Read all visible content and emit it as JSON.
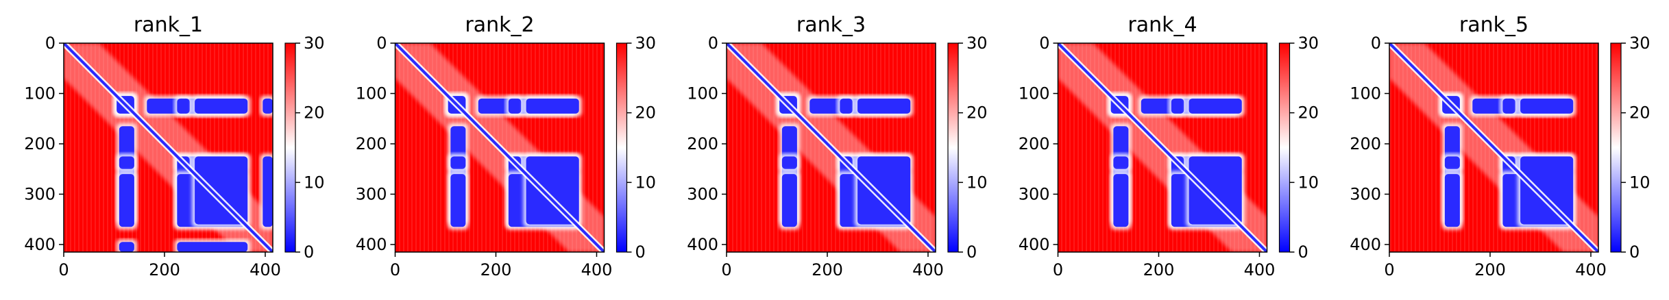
{
  "chart_data": [
    {
      "type": "heatmap",
      "title": "rank_1",
      "xlim": [
        0,
        415
      ],
      "ylim": [
        415,
        0
      ],
      "x_ticks": [
        0,
        200,
        400
      ],
      "y_ticks": [
        0,
        100,
        200,
        300,
        400
      ],
      "colorbar": {
        "range": [
          0,
          30
        ],
        "ticks": [
          0,
          10,
          20,
          30
        ],
        "colors": [
          "#0000ff",
          "#ffffff",
          "#ff0000"
        ]
      },
      "blue_blocks": [
        [
          105,
          140,
          105,
          140
        ],
        [
          165,
          355,
          110,
          140
        ],
        [
          225,
          360,
          225,
          250
        ],
        [
          225,
          360,
          260,
          365
        ],
        [
          110,
          140,
          225,
          250
        ],
        [
          110,
          140,
          260,
          365
        ],
        [
          395,
          415,
          110,
          140
        ],
        [
          395,
          415,
          225,
          365
        ]
      ]
    },
    {
      "type": "heatmap",
      "title": "rank_2",
      "xlim": [
        0,
        415
      ],
      "ylim": [
        415,
        0
      ],
      "x_ticks": [
        0,
        200,
        400
      ],
      "y_ticks": [
        0,
        100,
        200,
        300,
        400
      ],
      "colorbar": {
        "range": [
          0,
          30
        ],
        "ticks": [
          0,
          10,
          20,
          30
        ],
        "colors": [
          "#0000ff",
          "#ffffff",
          "#ff0000"
        ]
      },
      "blue_blocks": [
        [
          105,
          140,
          105,
          140
        ],
        [
          165,
          355,
          110,
          140
        ],
        [
          225,
          360,
          225,
          250
        ],
        [
          225,
          360,
          260,
          365
        ],
        [
          110,
          140,
          225,
          250
        ],
        [
          110,
          140,
          260,
          365
        ]
      ]
    },
    {
      "type": "heatmap",
      "title": "rank_3",
      "xlim": [
        0,
        415
      ],
      "ylim": [
        415,
        0
      ],
      "x_ticks": [
        0,
        200,
        400
      ],
      "y_ticks": [
        0,
        100,
        200,
        300,
        400
      ],
      "colorbar": {
        "range": [
          0,
          30
        ],
        "ticks": [
          0,
          10,
          20,
          30
        ],
        "colors": [
          "#0000ff",
          "#ffffff",
          "#ff0000"
        ]
      },
      "blue_blocks": [
        [
          105,
          140,
          105,
          140
        ],
        [
          165,
          355,
          110,
          140
        ],
        [
          225,
          360,
          225,
          250
        ],
        [
          225,
          360,
          260,
          365
        ],
        [
          110,
          140,
          225,
          250
        ],
        [
          110,
          140,
          260,
          365
        ]
      ]
    },
    {
      "type": "heatmap",
      "title": "rank_4",
      "xlim": [
        0,
        415
      ],
      "ylim": [
        415,
        0
      ],
      "x_ticks": [
        0,
        200,
        400
      ],
      "y_ticks": [
        0,
        100,
        200,
        300,
        400
      ],
      "colorbar": {
        "range": [
          0,
          30
        ],
        "ticks": [
          0,
          10,
          20,
          30
        ],
        "colors": [
          "#0000ff",
          "#ffffff",
          "#ff0000"
        ]
      },
      "blue_blocks": [
        [
          105,
          140,
          105,
          140
        ],
        [
          165,
          355,
          110,
          140
        ],
        [
          225,
          360,
          225,
          250
        ],
        [
          225,
          360,
          260,
          365
        ],
        [
          110,
          140,
          225,
          250
        ],
        [
          110,
          140,
          260,
          365
        ]
      ]
    },
    {
      "type": "heatmap",
      "title": "rank_5",
      "xlim": [
        0,
        415
      ],
      "ylim": [
        415,
        0
      ],
      "x_ticks": [
        0,
        200,
        400
      ],
      "y_ticks": [
        0,
        100,
        200,
        300,
        400
      ],
      "colorbar": {
        "range": [
          0,
          30
        ],
        "ticks": [
          0,
          10,
          20,
          30
        ],
        "colors": [
          "#0000ff",
          "#ffffff",
          "#ff0000"
        ]
      },
      "blue_blocks": [
        [
          105,
          140,
          105,
          140
        ],
        [
          165,
          355,
          110,
          140
        ],
        [
          225,
          360,
          225,
          250
        ],
        [
          225,
          360,
          260,
          365
        ],
        [
          110,
          140,
          225,
          250
        ],
        [
          110,
          140,
          260,
          365
        ]
      ]
    }
  ]
}
